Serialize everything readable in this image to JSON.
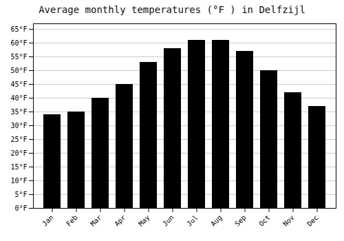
{
  "chart_data": {
    "type": "bar",
    "title": "Average monthly temperatures (°F ) in Delfzijl",
    "categories": [
      "Jan",
      "Feb",
      "Mar",
      "Apr",
      "May",
      "Jun",
      "Jul",
      "Aug",
      "Sep",
      "Oct",
      "Nov",
      "Dec"
    ],
    "values": [
      34,
      35,
      40,
      45,
      53,
      58,
      61,
      61,
      57,
      50,
      42,
      37
    ],
    "ylim": [
      0,
      67
    ],
    "yticks": [
      {
        "value": 0,
        "label": "0°F"
      },
      {
        "value": 5,
        "label": "5°F"
      },
      {
        "value": 10,
        "label": "10°F"
      },
      {
        "value": 15,
        "label": "15°F"
      },
      {
        "value": 20,
        "label": "20°F"
      },
      {
        "value": 25,
        "label": "25°F"
      },
      {
        "value": 30,
        "label": "30°F"
      },
      {
        "value": 35,
        "label": "35°F"
      },
      {
        "value": 40,
        "label": "40°F"
      },
      {
        "value": 45,
        "label": "45°F"
      },
      {
        "value": 50,
        "label": "50°F"
      },
      {
        "value": 55,
        "label": "55°F"
      },
      {
        "value": 60,
        "label": "60°F"
      },
      {
        "value": 65,
        "label": "65°F"
      }
    ],
    "grid": true
  }
}
